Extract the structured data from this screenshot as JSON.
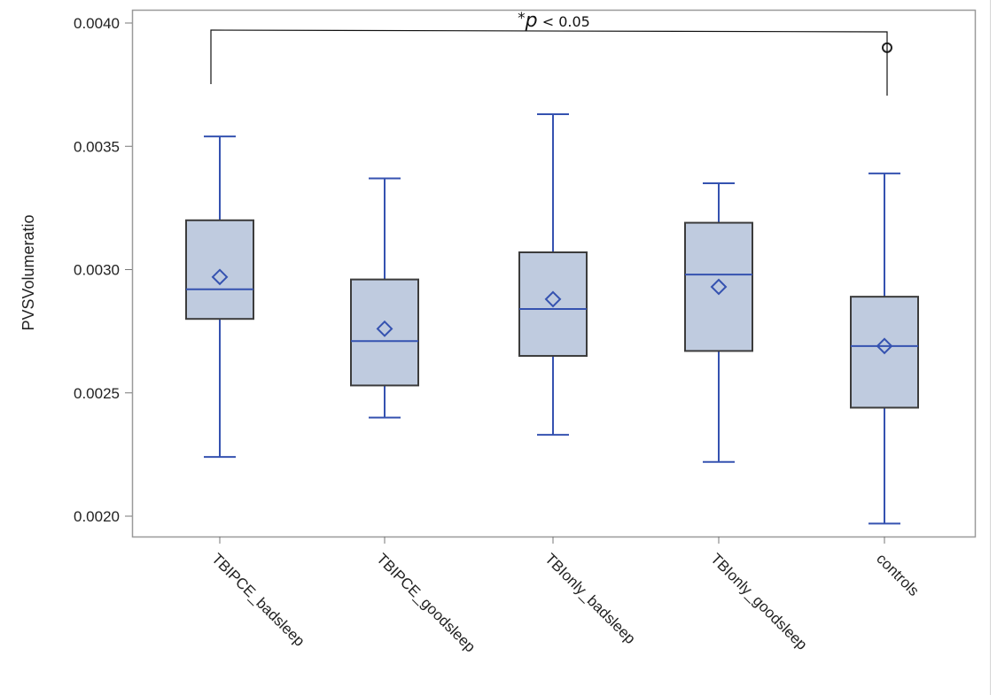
{
  "chart_data": {
    "type": "box",
    "title": "",
    "xlabel": "",
    "ylabel": "PVSVolumeratio",
    "ylim": [
      0.002,
      0.004
    ],
    "yticks": [
      "0.0020",
      "0.0025",
      "0.0030",
      "0.0035",
      "0.0040"
    ],
    "grid": false,
    "categories": [
      "TBIPCE_badsleep",
      "TBIPCE_goodsleep",
      "TBIonly_badsleep",
      "TBIonly_goodsleep",
      "controls"
    ],
    "boxes": [
      {
        "category": "TBIPCE_badsleep",
        "whisker_low": 0.00224,
        "q1": 0.0028,
        "median": 0.00292,
        "q3": 0.0032,
        "whisker_high": 0.00354,
        "mean": 0.00297,
        "outliers": []
      },
      {
        "category": "TBIPCE_goodsleep",
        "whisker_low": 0.0024,
        "q1": 0.00253,
        "median": 0.00271,
        "q3": 0.00296,
        "whisker_high": 0.00337,
        "mean": 0.00276,
        "outliers": []
      },
      {
        "category": "TBIonly_badsleep",
        "whisker_low": 0.00233,
        "q1": 0.00265,
        "median": 0.00284,
        "q3": 0.00307,
        "whisker_high": 0.00363,
        "mean": 0.00288,
        "outliers": []
      },
      {
        "category": "TBIonly_goodsleep",
        "whisker_low": 0.00222,
        "q1": 0.00267,
        "median": 0.00298,
        "q3": 0.00319,
        "whisker_high": 0.00335,
        "mean": 0.00293,
        "outliers": []
      },
      {
        "category": "controls",
        "whisker_low": 0.00197,
        "q1": 0.00244,
        "median": 0.00269,
        "q3": 0.00289,
        "whisker_high": 0.00339,
        "mean": 0.00269,
        "outliers": [
          0.0039
        ]
      }
    ],
    "annotation": {
      "from": "TBIPCE_badsleep",
      "to": "controls",
      "star": "*",
      "p": "p",
      "rest": " < 0.05"
    },
    "colors": {
      "box_fill": "#bfcbdf",
      "box_edge": "#3c3c3c",
      "whisker": "#3552b0",
      "mean_marker": "#3552b0",
      "frame": "#9a9a9a"
    }
  }
}
